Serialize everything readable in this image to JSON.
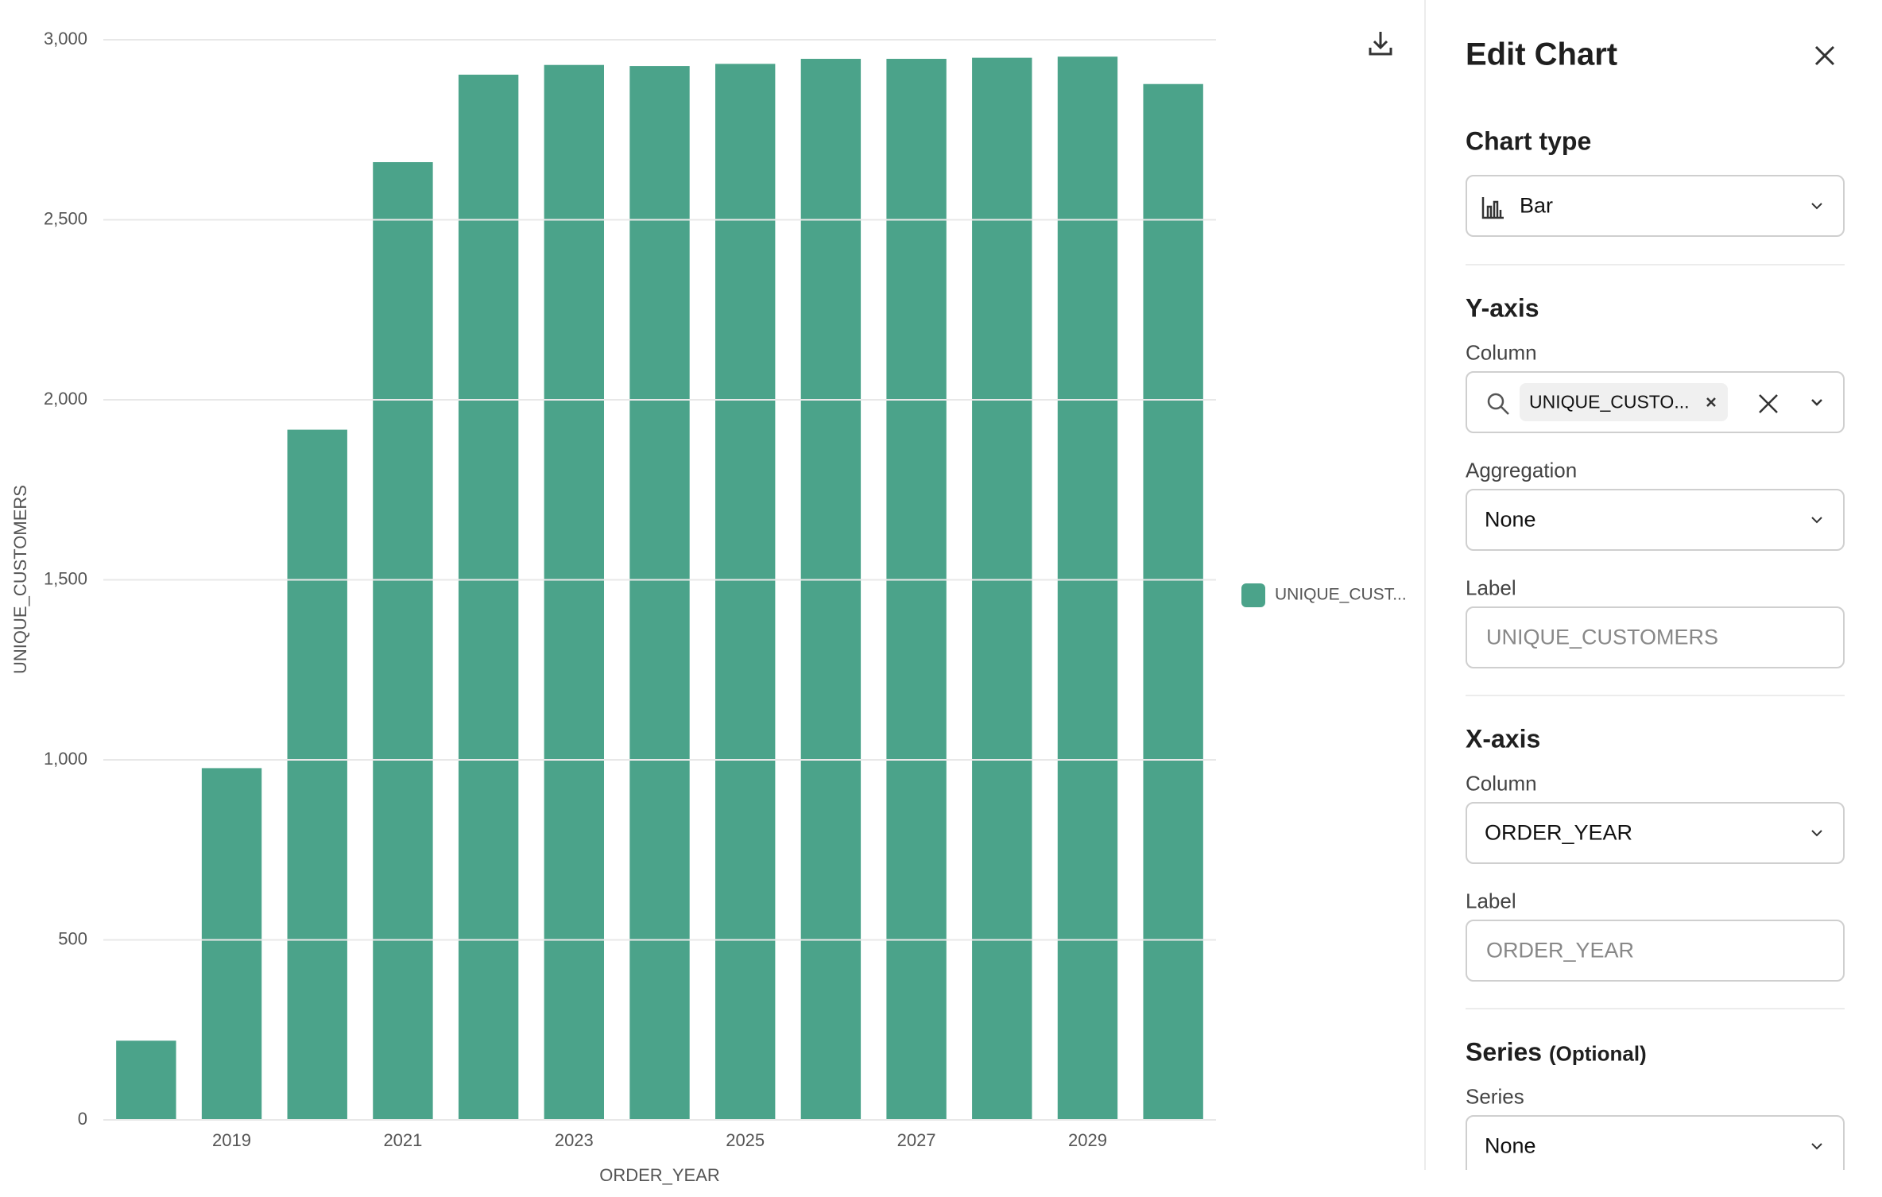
{
  "chart_data": {
    "type": "bar",
    "x_label": "ORDER_YEAR",
    "y_label": "UNIQUE_CUSTOMERS",
    "categories": [
      null,
      "2019",
      null,
      "2021",
      null,
      "2023",
      null,
      "2025",
      null,
      "2027",
      null,
      "2029",
      null
    ],
    "series": [
      {
        "name": "UNIQUE_CUST...",
        "color": "#4ba38a",
        "values": [
          220,
          977,
          1917,
          2660,
          2903,
          2930,
          2927,
          2933,
          2947,
          2947,
          2950,
          2953,
          2877
        ]
      }
    ],
    "ylim": [
      0,
      3000
    ],
    "yticks": [
      0,
      500,
      {
        "value": 1000,
        "label": "1,000"
      },
      {
        "value": 1500,
        "label": "1,500"
      },
      {
        "value": 2000,
        "label": "2,000"
      },
      {
        "value": 2500,
        "label": "2,500"
      },
      {
        "value": 3000,
        "label": "3,000"
      }
    ],
    "grid": true,
    "legend": "right"
  },
  "panel": {
    "title": "Edit Chart",
    "chart_type": {
      "heading": "Chart type",
      "value": "Bar"
    },
    "y_axis": {
      "heading": "Y-axis",
      "column_label": "Column",
      "column_value": "UNIQUE_CUSTO...",
      "aggregation_label": "Aggregation",
      "aggregation_value": "None",
      "label_label": "Label",
      "label_placeholder": "UNIQUE_CUSTOMERS"
    },
    "x_axis": {
      "heading": "X-axis",
      "column_label": "Column",
      "column_value": "ORDER_YEAR",
      "label_label": "Label",
      "label_placeholder": "ORDER_YEAR"
    },
    "series": {
      "heading": "Series",
      "optional": "(Optional)",
      "series_label": "Series",
      "series_value": "None"
    }
  }
}
